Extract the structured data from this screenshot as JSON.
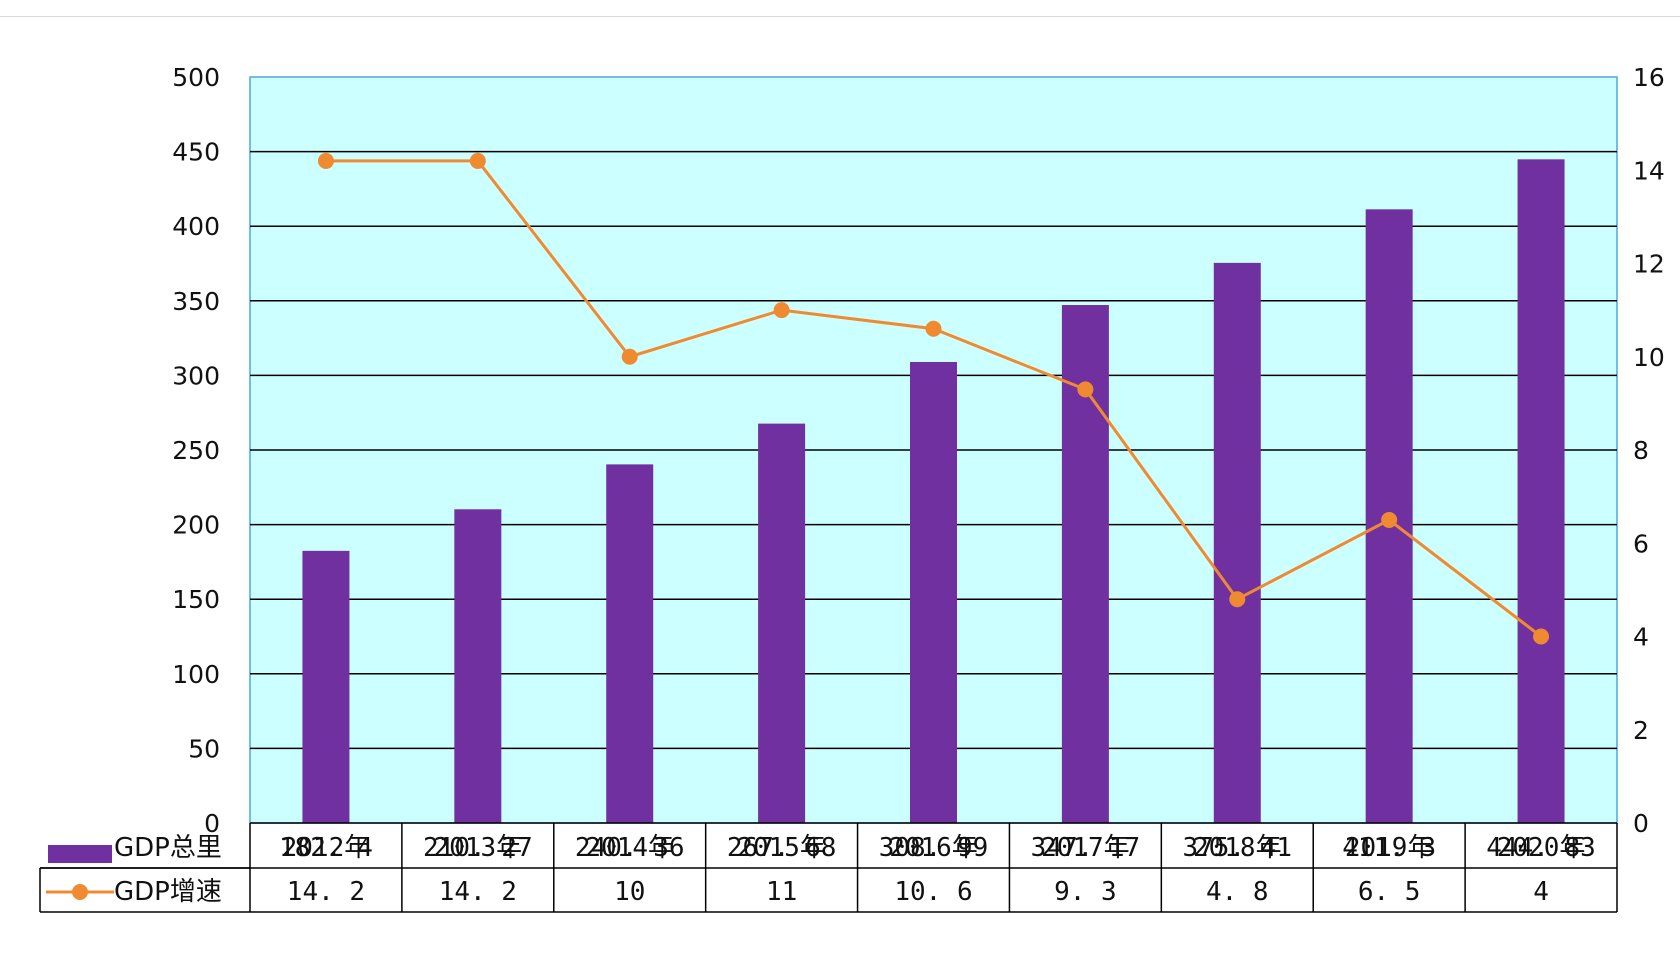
{
  "chart_data": {
    "type": "bar",
    "categories": [
      "2012年",
      "2013年",
      "2014年",
      "2015年",
      "2016年",
      "2017年",
      "2018年",
      "2019年",
      "2020年"
    ],
    "series": [
      {
        "name": "GDP总里",
        "type": "bar",
        "axis": "left",
        "color": "#7030a0",
        "values": [
          182.4,
          210.27,
          240.36,
          267.68,
          308.99,
          347.17,
          375.41,
          411.3,
          444.83
        ],
        "labels": [
          "182. 4",
          "210. 27",
          "240. 36",
          "267. 68",
          "308. 99",
          "347. 17",
          "375. 41",
          "411. 3",
          "444. 83"
        ]
      },
      {
        "name": "GDP增速",
        "type": "line",
        "axis": "right",
        "color": "#f08a30",
        "values": [
          14.2,
          14.2,
          10,
          11,
          10.6,
          9.3,
          4.8,
          6.5,
          4
        ],
        "labels": [
          "14. 2",
          "14. 2",
          "10",
          "11",
          "10. 6",
          "9. 3",
          "4. 8",
          "6. 5",
          "4"
        ]
      }
    ],
    "y_left": {
      "range": [
        0,
        500
      ],
      "ticks": [
        "0",
        "50",
        "100",
        "150",
        "200",
        "250",
        "300",
        "350",
        "400",
        "450",
        "500"
      ]
    },
    "y_right": {
      "range": [
        0,
        16
      ],
      "ticks": [
        "0",
        "2",
        "4",
        "6",
        "8",
        "10",
        "12",
        "14",
        "16"
      ]
    },
    "plot_background": "#ccffff",
    "grid": true,
    "data_table": true,
    "legend": "in-table"
  }
}
